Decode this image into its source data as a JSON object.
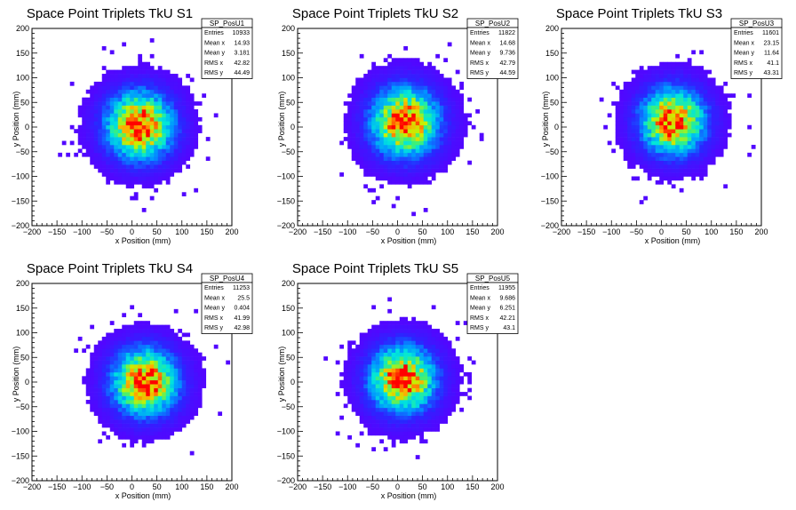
{
  "chart_data": [
    {
      "type": "heatmap",
      "title": "Space Point Triplets TkU S1",
      "xlabel": "x Position (mm)",
      "ylabel": "y Position (mm)",
      "xlim": [
        -200,
        200
      ],
      "ylim": [
        -200,
        200
      ],
      "xticks": [
        "−200",
        "−150",
        "−100",
        "−50",
        "0",
        "50",
        "100",
        "150",
        "200"
      ],
      "yticks": [
        "−200",
        "−150",
        "−100",
        "−50",
        "0",
        "50",
        "100",
        "150",
        "200"
      ],
      "colormap": "rainbow (violet low → red high)",
      "stats": {
        "name": "SP_PosU1",
        "rows": [
          {
            "label": "Entries",
            "value": "10933"
          },
          {
            "label": "Mean x",
            "value": "14.93"
          },
          {
            "label": "Mean y",
            "value": "3.181"
          },
          {
            "label": "RMS x",
            "value": "42.82"
          },
          {
            "label": "RMS y",
            "value": "44.49"
          }
        ]
      },
      "center": [
        15,
        3
      ],
      "rms": [
        43,
        44
      ]
    },
    {
      "type": "heatmap",
      "title": "Space Point Triplets TkU S2",
      "xlabel": "x Position (mm)",
      "ylabel": "y Position (mm)",
      "xlim": [
        -200,
        200
      ],
      "ylim": [
        -200,
        200
      ],
      "xticks": [
        "−200",
        "−150",
        "−100",
        "−50",
        "0",
        "50",
        "100",
        "150",
        "200"
      ],
      "yticks": [
        "−200",
        "−150",
        "−100",
        "−50",
        "0",
        "50",
        "100",
        "150",
        "200"
      ],
      "colormap": "rainbow (violet low → red high)",
      "stats": {
        "name": "SP_PosU2",
        "rows": [
          {
            "label": "Entries",
            "value": "11822"
          },
          {
            "label": "Mean x",
            "value": "14.68"
          },
          {
            "label": "Mean y",
            "value": "9.736"
          },
          {
            "label": "RMS x",
            "value": "42.79"
          },
          {
            "label": "RMS y",
            "value": "44.59"
          }
        ]
      },
      "center": [
        15,
        10
      ],
      "rms": [
        43,
        45
      ]
    },
    {
      "type": "heatmap",
      "title": "Space Point Triplets TkU S3",
      "xlabel": "x Position (mm)",
      "ylabel": "y Position (mm)",
      "xlim": [
        -200,
        200
      ],
      "ylim": [
        -200,
        200
      ],
      "xticks": [
        "−200",
        "−150",
        "−100",
        "−50",
        "0",
        "50",
        "100",
        "150",
        "200"
      ],
      "yticks": [
        "−200",
        "−150",
        "−100",
        "−50",
        "0",
        "50",
        "100",
        "150",
        "200"
      ],
      "colormap": "rainbow (violet low → red high)",
      "stats": {
        "name": "SP_PosU3",
        "rows": [
          {
            "label": "Entries",
            "value": "11601"
          },
          {
            "label": "Mean x",
            "value": "23.15"
          },
          {
            "label": "Mean y",
            "value": "11.64"
          },
          {
            "label": "RMS x",
            "value": "41.1"
          },
          {
            "label": "RMS y",
            "value": "43.31"
          }
        ]
      },
      "center": [
        23,
        12
      ],
      "rms": [
        41,
        43
      ]
    },
    {
      "type": "heatmap",
      "title": "Space Point Triplets TkU S4",
      "xlabel": "x Position (mm)",
      "ylabel": "y Position (mm)",
      "xlim": [
        -200,
        200
      ],
      "ylim": [
        -200,
        200
      ],
      "xticks": [
        "−200",
        "−150",
        "−100",
        "−50",
        "0",
        "50",
        "100",
        "150",
        "200"
      ],
      "yticks": [
        "−200",
        "−150",
        "−100",
        "−50",
        "0",
        "50",
        "100",
        "150",
        "200"
      ],
      "colormap": "rainbow (violet low → red high)",
      "stats": {
        "name": "SP_PosU4",
        "rows": [
          {
            "label": "Entries",
            "value": "11253"
          },
          {
            "label": "Mean x",
            "value": "25.5"
          },
          {
            "label": "Mean y",
            "value": "0.404"
          },
          {
            "label": "RMS x",
            "value": "41.99"
          },
          {
            "label": "RMS y",
            "value": "42.98"
          }
        ]
      },
      "center": [
        26,
        0
      ],
      "rms": [
        42,
        43
      ]
    },
    {
      "type": "heatmap",
      "title": "Space Point Triplets TkU S5",
      "xlabel": "x Position (mm)",
      "ylabel": "y Position (mm)",
      "xlim": [
        -200,
        200
      ],
      "ylim": [
        -200,
        200
      ],
      "xticks": [
        "−200",
        "−150",
        "−100",
        "−50",
        "0",
        "50",
        "100",
        "150",
        "200"
      ],
      "yticks": [
        "−200",
        "−150",
        "−100",
        "−50",
        "0",
        "50",
        "100",
        "150",
        "200"
      ],
      "colormap": "rainbow (violet low → red high)",
      "stats": {
        "name": "SP_PosU5",
        "rows": [
          {
            "label": "Entries",
            "value": "11955"
          },
          {
            "label": "Mean x",
            "value": "9.686"
          },
          {
            "label": "Mean y",
            "value": "6.251"
          },
          {
            "label": "RMS x",
            "value": "42.21"
          },
          {
            "label": "RMS y",
            "value": "43.1"
          }
        ]
      },
      "center": [
        10,
        6
      ],
      "rms": [
        42,
        43
      ]
    }
  ]
}
